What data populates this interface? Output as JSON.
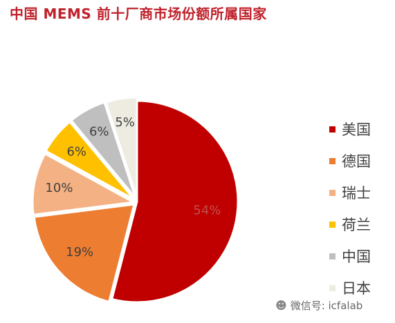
{
  "title": "中国 MEMS 前十厂商市场份额所属国家",
  "chart_data": {
    "type": "pie",
    "title": "中国 MEMS 前十厂商市场份额所属国家",
    "unit": "%",
    "labels": [
      "美国",
      "德国",
      "瑞士",
      "荷兰",
      "中国",
      "日本"
    ],
    "values": [
      54,
      19,
      10,
      6,
      6,
      5
    ],
    "value_labels": [
      "54%",
      "19%",
      "10%",
      "6%",
      "6%",
      "5%"
    ],
    "colors": [
      "#c00000",
      "#ed7d31",
      "#f4b183",
      "#ffc000",
      "#bfbfbf",
      "#eeece1"
    ],
    "label_colors": [
      "#c0504d",
      "#404040",
      "#404040",
      "#404040",
      "#404040",
      "#404040"
    ],
    "start_angle": "12 o'clock",
    "direction": "clockwise",
    "legend_position": "right"
  },
  "watermark": {
    "icon": "wechat-icon",
    "text": "微信号: icfalab"
  }
}
